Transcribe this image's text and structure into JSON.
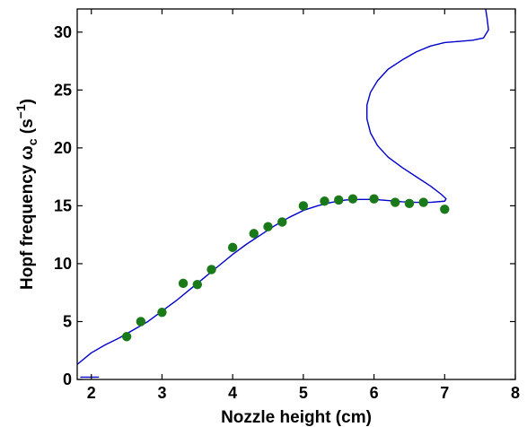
{
  "chart_data": {
    "type": "scatter",
    "title": "",
    "xlabel": "Nozzle height (cm)",
    "ylabel": {
      "main": "Hopf frequency ω",
      "subscript": "c",
      "unit_open": " (s",
      "unit_superscript": "−1",
      "unit_close": ")"
    },
    "xlim": [
      1.8,
      8
    ],
    "ylim": [
      0,
      32
    ],
    "xticks": [
      "2",
      "3",
      "4",
      "5",
      "6",
      "7",
      "8"
    ],
    "yticks": [
      "0",
      "5",
      "10",
      "15",
      "20",
      "25",
      "30"
    ],
    "grid": false,
    "legend": "none",
    "colors": {
      "curve": "#0000cc",
      "points": "#1a7a1a",
      "axes": "#000000"
    },
    "series": [
      {
        "kind": "line",
        "points": [
          [
            1.8,
            1.3
          ],
          [
            2.0,
            2.3
          ],
          [
            2.2,
            3.0
          ],
          [
            2.4,
            3.6
          ],
          [
            2.6,
            4.3
          ],
          [
            2.8,
            5.0
          ],
          [
            3.0,
            5.9
          ],
          [
            3.2,
            6.8
          ],
          [
            3.4,
            7.8
          ],
          [
            3.6,
            8.8
          ],
          [
            3.8,
            9.8
          ],
          [
            4.0,
            10.8
          ],
          [
            4.2,
            11.7
          ],
          [
            4.4,
            12.5
          ],
          [
            4.6,
            13.3
          ],
          [
            4.8,
            14.0
          ],
          [
            5.0,
            14.6
          ],
          [
            5.2,
            15.0
          ],
          [
            5.4,
            15.3
          ],
          [
            5.6,
            15.5
          ],
          [
            5.8,
            15.55
          ],
          [
            6.0,
            15.55
          ],
          [
            6.2,
            15.45
          ],
          [
            6.4,
            15.35
          ],
          [
            6.6,
            15.3
          ],
          [
            6.8,
            15.3
          ],
          [
            7.0,
            15.4
          ],
          [
            7.02,
            15.6
          ],
          [
            6.95,
            16.0
          ],
          [
            6.8,
            16.7
          ],
          [
            6.6,
            17.5
          ],
          [
            6.4,
            18.3
          ],
          [
            6.2,
            19.2
          ],
          [
            6.05,
            20.2
          ],
          [
            5.95,
            21.3
          ],
          [
            5.9,
            22.5
          ],
          [
            5.9,
            23.7
          ],
          [
            5.95,
            24.8
          ],
          [
            6.05,
            25.8
          ],
          [
            6.2,
            26.8
          ],
          [
            6.4,
            27.6
          ],
          [
            6.6,
            28.3
          ],
          [
            6.8,
            28.8
          ],
          [
            7.0,
            29.1
          ],
          [
            7.2,
            29.2
          ],
          [
            7.4,
            29.3
          ],
          [
            7.55,
            29.5
          ],
          [
            7.62,
            30.2
          ],
          [
            7.6,
            31.2
          ],
          [
            7.58,
            32.0
          ]
        ]
      },
      {
        "kind": "line",
        "points": [
          [
            1.85,
            0.2
          ],
          [
            2.1,
            0.2
          ]
        ]
      },
      {
        "kind": "scatter",
        "points": [
          [
            2.5,
            3.7
          ],
          [
            2.7,
            5.0
          ],
          [
            3.0,
            5.8
          ],
          [
            3.3,
            8.3
          ],
          [
            3.5,
            8.2
          ],
          [
            3.7,
            9.5
          ],
          [
            4.0,
            11.4
          ],
          [
            4.3,
            12.6
          ],
          [
            4.5,
            13.2
          ],
          [
            4.7,
            13.6
          ],
          [
            5.0,
            15.0
          ],
          [
            5.3,
            15.4
          ],
          [
            5.5,
            15.5
          ],
          [
            5.7,
            15.6
          ],
          [
            6.0,
            15.6
          ],
          [
            6.3,
            15.3
          ],
          [
            6.5,
            15.2
          ],
          [
            6.7,
            15.3
          ],
          [
            7.0,
            14.7
          ]
        ]
      }
    ]
  }
}
